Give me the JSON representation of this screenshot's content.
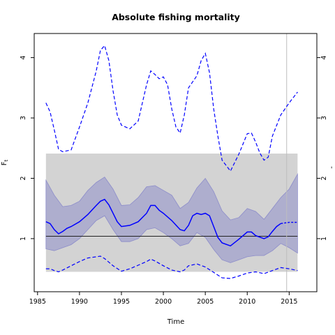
{
  "chart_data": {
    "type": "line",
    "title": "Absolute fishing mortality",
    "xlabel": "Time",
    "ylabel": "F",
    "ylabel_subscript": "t",
    "right_axis_partial_label": "-",
    "xlim": [
      1984.6,
      2018.3
    ],
    "ylim": [
      0.12,
      4.4
    ],
    "x_ticks": [
      "1985",
      "1990",
      "1995",
      "2000",
      "2005",
      "2010",
      "2015"
    ],
    "y_ticks_left": [
      "1",
      "2",
      "3",
      "4"
    ],
    "y_ticks_right": [
      "1",
      "2",
      "3",
      "4"
    ],
    "vline_x": 2014.7,
    "reference_band": {
      "x": [
        1986,
        2016
      ],
      "y": [
        0.45,
        2.41
      ]
    },
    "hline_y": 1.04,
    "series": [
      {
        "role": "upper-dashed",
        "x": [
          1986,
          1986.5,
          1987,
          1987.5,
          1988,
          1989,
          1990,
          1991,
          1992,
          1992.5,
          1993,
          1993.5,
          1994,
          1994.5,
          1995,
          1996,
          1997,
          1998,
          1998.5,
          1999,
          1999.5,
          2000,
          2000.5,
          2001,
          2001.5,
          2002,
          2002.5,
          2003,
          2003.5,
          2004,
          2004.5,
          2005,
          2005.5,
          2006,
          2006.5,
          2007,
          2008,
          2009,
          2010,
          2010.5,
          2011,
          2011.5,
          2012,
          2012.5,
          2013,
          2014,
          2015,
          2016
        ],
        "values": [
          3.25,
          3.1,
          2.8,
          2.48,
          2.44,
          2.47,
          2.85,
          3.25,
          3.78,
          4.12,
          4.2,
          3.95,
          3.45,
          3.05,
          2.88,
          2.82,
          2.95,
          3.55,
          3.78,
          3.72,
          3.65,
          3.68,
          3.55,
          3.15,
          2.85,
          2.75,
          3.05,
          3.5,
          3.6,
          3.7,
          3.95,
          4.07,
          3.75,
          3.15,
          2.7,
          2.3,
          2.12,
          2.4,
          2.74,
          2.75,
          2.6,
          2.42,
          2.3,
          2.35,
          2.7,
          3.05,
          3.25,
          3.43
        ]
      },
      {
        "role": "lower-dashed",
        "x": [
          1986,
          1986.5,
          1987,
          1987.5,
          1988,
          1989,
          1990,
          1991,
          1992,
          1992.5,
          1993,
          1994,
          1995,
          1996,
          1997,
          1998,
          1998.5,
          1999,
          2000,
          2001,
          2002,
          2002.5,
          2003,
          2004,
          2005,
          2006,
          2007,
          2008,
          2009,
          2010,
          2011,
          2012,
          2013,
          2014,
          2015,
          2016
        ],
        "values": [
          0.5,
          0.5,
          0.47,
          0.45,
          0.48,
          0.55,
          0.62,
          0.68,
          0.7,
          0.71,
          0.67,
          0.55,
          0.46,
          0.5,
          0.56,
          0.62,
          0.66,
          0.63,
          0.55,
          0.48,
          0.45,
          0.48,
          0.55,
          0.58,
          0.53,
          0.44,
          0.35,
          0.34,
          0.38,
          0.43,
          0.45,
          0.42,
          0.47,
          0.52,
          0.5,
          0.47
        ]
      },
      {
        "role": "estimate",
        "x": [
          1986,
          1986.5,
          1987,
          1987.5,
          1988,
          1988.5,
          1989,
          1990,
          1991,
          1992,
          1992.5,
          1993,
          1993.5,
          1994,
          1994.5,
          1995,
          1996,
          1997,
          1998,
          1998.5,
          1999,
          1999.5,
          2000,
          2001,
          2002,
          2002.5,
          2003,
          2003.5,
          2004,
          2004.5,
          2005,
          2005.5,
          2006,
          2006.5,
          2007,
          2008,
          2009,
          2010,
          2010.5,
          2011,
          2012,
          2012.5,
          2013,
          2013.5,
          2014,
          2015,
          2016
        ],
        "values": [
          1.28,
          1.25,
          1.15,
          1.08,
          1.12,
          1.17,
          1.2,
          1.28,
          1.4,
          1.55,
          1.62,
          1.65,
          1.56,
          1.42,
          1.28,
          1.2,
          1.22,
          1.28,
          1.42,
          1.55,
          1.55,
          1.47,
          1.42,
          1.3,
          1.15,
          1.13,
          1.22,
          1.38,
          1.42,
          1.4,
          1.42,
          1.38,
          1.2,
          1.02,
          0.93,
          0.88,
          0.99,
          1.11,
          1.11,
          1.05,
          1.0,
          1.03,
          1.12,
          1.2,
          1.25,
          1.27,
          1.27
        ]
      },
      {
        "role": "ci-upper",
        "x": [
          1986,
          1987,
          1988,
          1989,
          1990,
          1991,
          1992,
          1993,
          1994,
          1995,
          1996,
          1997,
          1998,
          1999,
          2000,
          2001,
          2002,
          2003,
          2004,
          2005,
          2006,
          2007,
          2008,
          2009,
          2010,
          2011,
          2012,
          2013,
          2014,
          2015,
          2016
        ],
        "values": [
          1.97,
          1.72,
          1.53,
          1.55,
          1.62,
          1.8,
          1.93,
          2.02,
          1.82,
          1.55,
          1.56,
          1.68,
          1.86,
          1.88,
          1.8,
          1.72,
          1.5,
          1.6,
          1.84,
          2.0,
          1.78,
          1.46,
          1.31,
          1.35,
          1.5,
          1.45,
          1.32,
          1.5,
          1.68,
          1.82,
          2.07
        ]
      },
      {
        "role": "ci-lower",
        "x": [
          1986,
          1987,
          1988,
          1989,
          1990,
          1991,
          1992,
          1993,
          1994,
          1995,
          1996,
          1997,
          1998,
          1999,
          2000,
          2001,
          2002,
          2003,
          2004,
          2005,
          2006,
          2007,
          2008,
          2009,
          2010,
          2011,
          2012,
          2013,
          2014,
          2015,
          2016
        ],
        "values": [
          0.83,
          0.8,
          0.85,
          0.9,
          1.0,
          1.15,
          1.3,
          1.38,
          1.15,
          0.95,
          0.95,
          1.0,
          1.15,
          1.18,
          1.1,
          1.0,
          0.88,
          0.92,
          1.1,
          1.02,
          0.82,
          0.65,
          0.6,
          0.65,
          0.7,
          0.72,
          0.72,
          0.8,
          0.92,
          0.85,
          0.76
        ]
      }
    ],
    "colors": {
      "line": "#0000ff",
      "ci_fill": "#8080c8",
      "band_fill": "#d3d3d3",
      "hline": "#222222",
      "vline": "#bebebe"
    }
  }
}
